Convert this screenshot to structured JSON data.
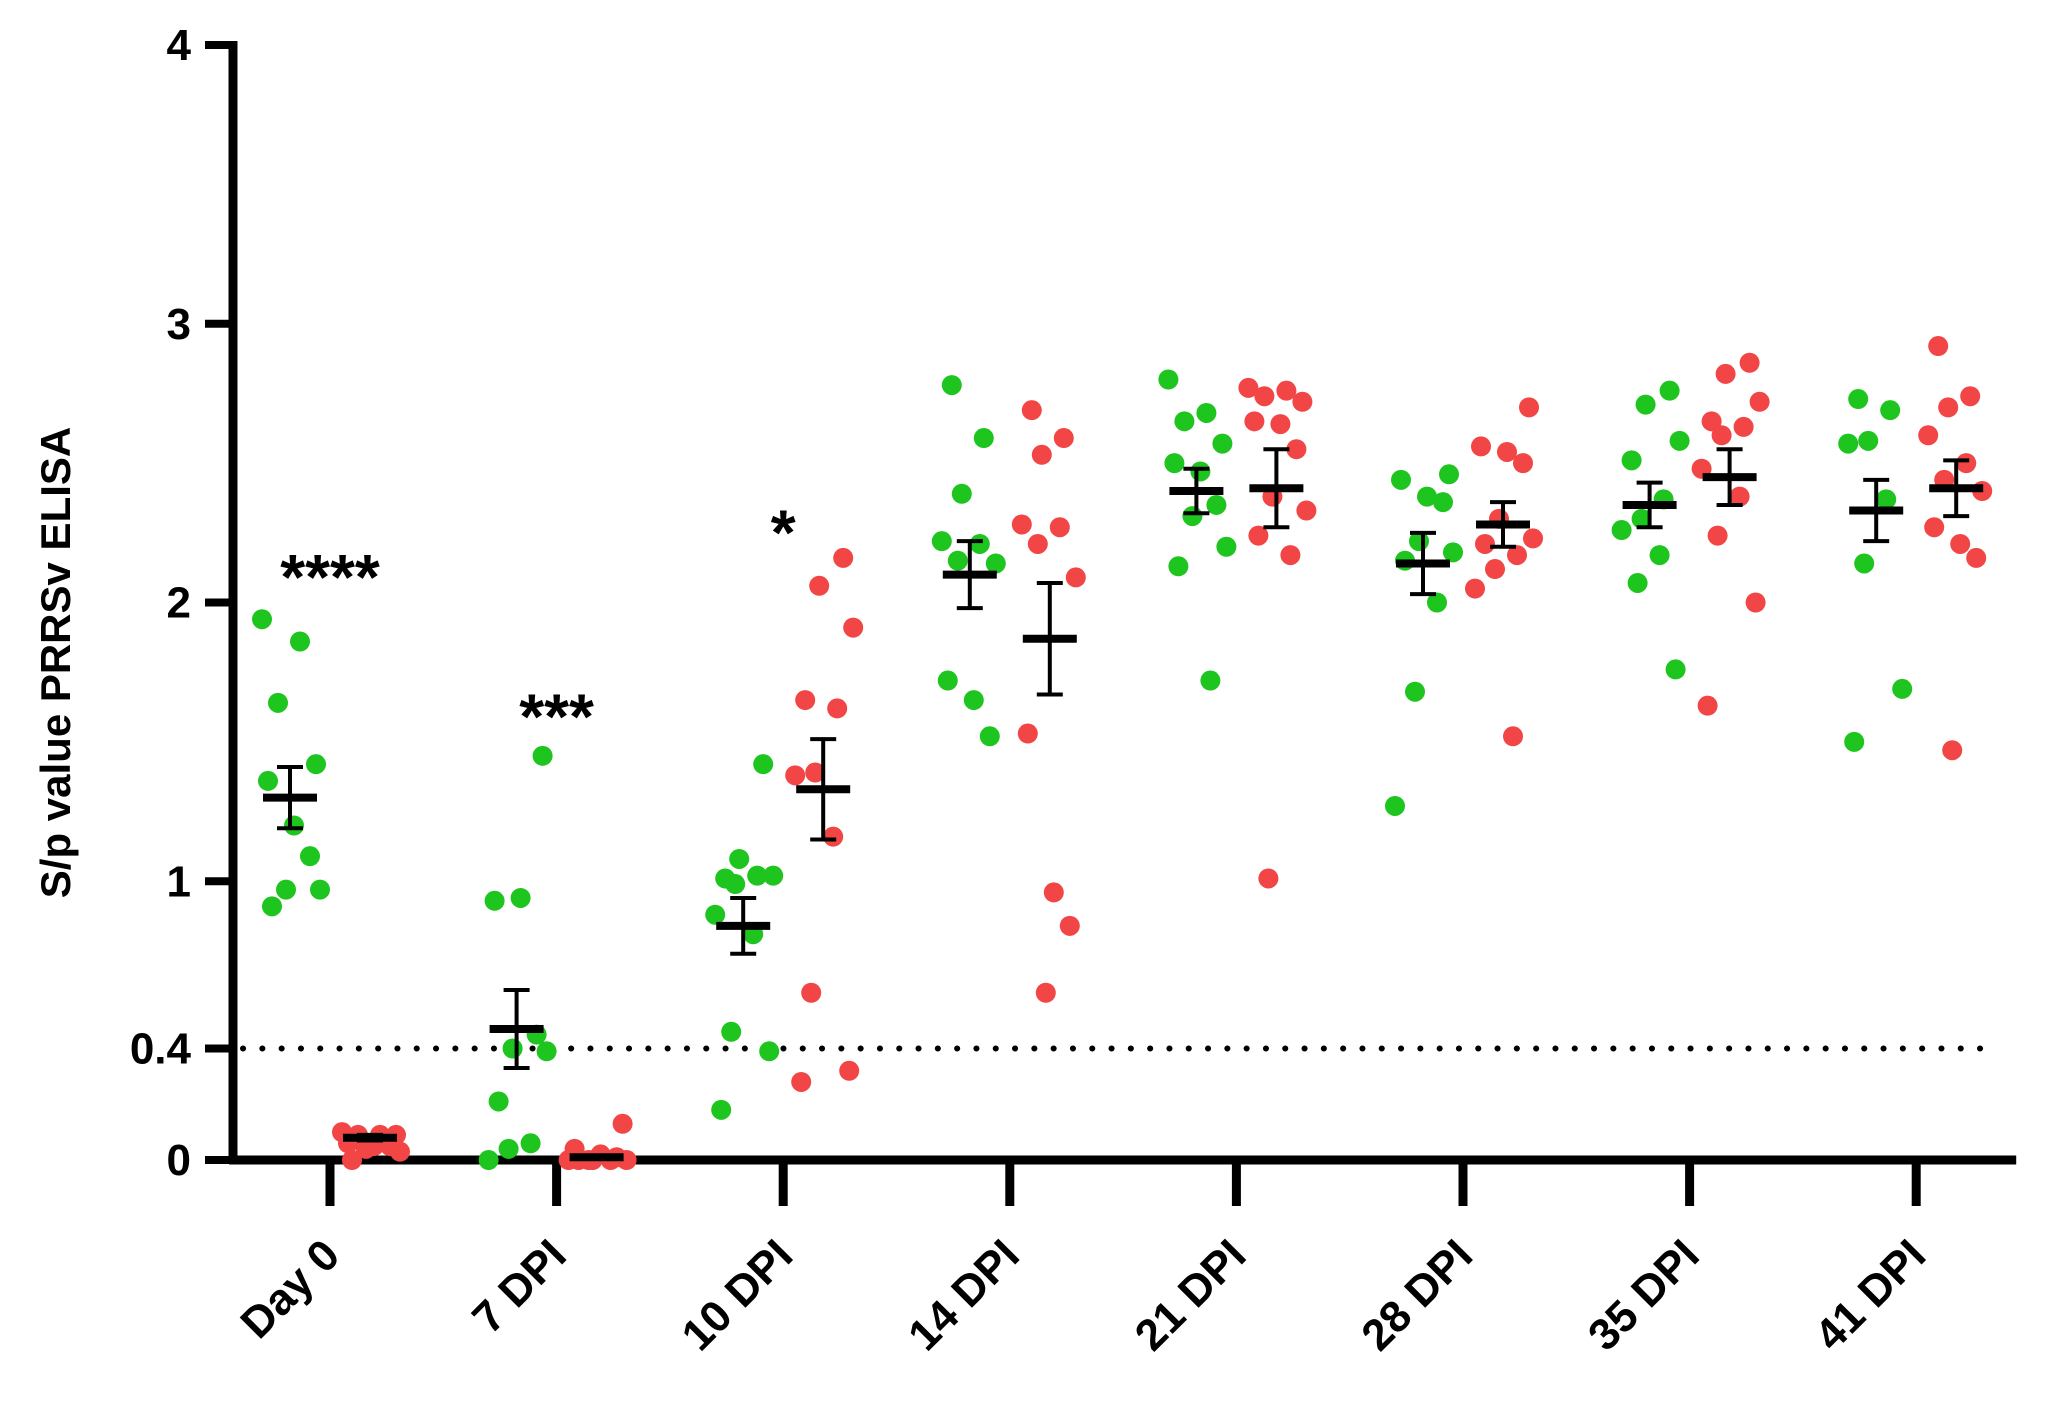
{
  "chart_data": {
    "type": "scatter",
    "title": "",
    "xlabel": "",
    "ylabel": "S/p value PRRSv ELISA",
    "ylim": [
      0,
      4
    ],
    "yticks": [
      "0",
      "0.4",
      "1",
      "2",
      "3",
      "4"
    ],
    "categories": [
      "Day 0",
      "7 DPI",
      "10 DPI",
      "14 DPI",
      "21 DPI",
      "28 DPI",
      "35 DPI",
      "41 DPI"
    ],
    "threshold": 0.4,
    "grid": false,
    "legend": "none",
    "colors": {
      "green": "#1ec51e",
      "red": "#f24545",
      "axis": "#000000"
    },
    "series": [
      {
        "color": "#1ec51e",
        "points": [
          [
            1.94,
            1.86,
            1.64,
            1.42,
            1.36,
            1.2,
            1.09,
            0.97,
            0.97,
            0.91
          ],
          [
            1.45,
            0.93,
            0.94,
            0.45,
            0.4,
            0.39,
            0.21,
            0.06,
            0.04,
            0.0
          ],
          [
            1.42,
            1.08,
            1.02,
            1.01,
            1.02,
            0.99,
            0.88,
            0.81,
            0.46,
            0.39,
            0.18
          ],
          [
            2.78,
            2.59,
            2.39,
            2.22,
            2.21,
            2.15,
            2.14,
            1.72,
            1.65,
            1.52
          ],
          [
            2.8,
            2.68,
            2.65,
            2.57,
            2.5,
            2.47,
            2.35,
            2.31,
            2.2,
            2.13,
            1.72
          ],
          [
            2.46,
            2.44,
            2.38,
            2.36,
            2.22,
            2.18,
            2.15,
            2.0,
            1.68,
            1.27
          ],
          [
            2.76,
            2.71,
            2.58,
            2.51,
            2.37,
            2.3,
            2.26,
            2.17,
            2.07,
            1.76
          ],
          [
            2.73,
            2.69,
            2.58,
            2.57,
            2.37,
            2.14,
            1.69,
            1.5
          ]
        ],
        "mean": [
          1.3,
          0.47,
          0.84,
          2.1,
          2.4,
          2.14,
          2.35,
          2.33
        ],
        "sem": [
          0.11,
          0.14,
          0.1,
          0.12,
          0.08,
          0.11,
          0.08,
          0.11
        ]
      },
      {
        "color": "#f24545",
        "points": [
          [
            0.1,
            0.09,
            0.09,
            0.09,
            0.06,
            0.05,
            0.05,
            0.04,
            0.03,
            0.0
          ],
          [
            0.13,
            0.04,
            0.02,
            0.01,
            0.0,
            0.0,
            0.0,
            0.0,
            0.0,
            0.0
          ],
          [
            2.16,
            2.06,
            1.91,
            1.65,
            1.62,
            1.39,
            1.38,
            1.16,
            0.6,
            0.32,
            0.28
          ],
          [
            2.69,
            2.59,
            2.53,
            2.28,
            2.27,
            2.21,
            2.09,
            1.53,
            0.96,
            0.84,
            0.6
          ],
          [
            2.77,
            2.76,
            2.74,
            2.72,
            2.65,
            2.64,
            2.55,
            2.38,
            2.33,
            2.24,
            2.17,
            1.01
          ],
          [
            2.7,
            2.56,
            2.54,
            2.5,
            2.3,
            2.23,
            2.21,
            2.17,
            2.12,
            2.05,
            1.52
          ],
          [
            2.86,
            2.82,
            2.72,
            2.65,
            2.63,
            2.6,
            2.48,
            2.38,
            2.24,
            2.0,
            1.63
          ],
          [
            2.92,
            2.74,
            2.7,
            2.6,
            2.5,
            2.44,
            2.4,
            2.27,
            2.21,
            2.16,
            1.47
          ]
        ],
        "mean": [
          0.08,
          0.01,
          1.33,
          1.87,
          2.41,
          2.28,
          2.45,
          2.41
        ],
        "sem": [
          0.01,
          0.005,
          0.18,
          0.2,
          0.14,
          0.08,
          0.1,
          0.1
        ]
      }
    ],
    "annotations": [
      {
        "category": "Day 0",
        "text": "****",
        "y": 2.12
      },
      {
        "category": "7 DPI",
        "text": "***",
        "y": 1.62
      },
      {
        "category": "10 DPI",
        "text": "*",
        "y": 2.28
      }
    ]
  }
}
